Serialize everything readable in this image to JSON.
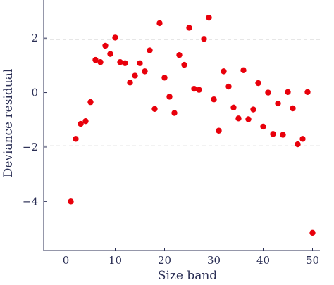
{
  "chart_data": {
    "type": "scatter",
    "xlabel": "Size band",
    "ylabel": "Deviance residual",
    "xlim": [
      -4.5,
      51.5
    ],
    "ylim": [
      -5.8,
      3.4
    ],
    "x_ticks": [
      0,
      10,
      20,
      30,
      40,
      50
    ],
    "y_ticks": [
      -4,
      -2,
      0,
      2
    ],
    "x_tick_labels": [
      "0",
      "10",
      "20",
      "30",
      "40",
      "50"
    ],
    "y_tick_labels": [
      "−4",
      "−2",
      "0",
      "2"
    ],
    "grid": false,
    "reference_lines": [
      1.96,
      -1.96
    ],
    "colors": {
      "points": "#e8000b",
      "axis": "#2b2f55",
      "reference": "#9a9a9a"
    },
    "points": [
      {
        "x": 1,
        "y": -4.0
      },
      {
        "x": 2,
        "y": -1.7
      },
      {
        "x": 3,
        "y": -1.15
      },
      {
        "x": 4,
        "y": -1.05
      },
      {
        "x": 5,
        "y": -0.35
      },
      {
        "x": 6,
        "y": 1.2
      },
      {
        "x": 7,
        "y": 1.12
      },
      {
        "x": 8,
        "y": 1.72
      },
      {
        "x": 9,
        "y": 1.42
      },
      {
        "x": 10,
        "y": 2.02
      },
      {
        "x": 11,
        "y": 1.12
      },
      {
        "x": 12,
        "y": 1.08
      },
      {
        "x": 13,
        "y": 0.37
      },
      {
        "x": 14,
        "y": 0.62
      },
      {
        "x": 15,
        "y": 1.08
      },
      {
        "x": 16,
        "y": 0.78
      },
      {
        "x": 17,
        "y": 1.55
      },
      {
        "x": 18,
        "y": -0.6
      },
      {
        "x": 19,
        "y": 2.55
      },
      {
        "x": 20,
        "y": 0.55
      },
      {
        "x": 21,
        "y": -0.15
      },
      {
        "x": 22,
        "y": -0.75
      },
      {
        "x": 23,
        "y": 1.38
      },
      {
        "x": 24,
        "y": 1.02
      },
      {
        "x": 25,
        "y": 2.38
      },
      {
        "x": 26,
        "y": 0.14
      },
      {
        "x": 27,
        "y": 0.1
      },
      {
        "x": 28,
        "y": 1.97
      },
      {
        "x": 29,
        "y": 2.75
      },
      {
        "x": 30,
        "y": -0.25
      },
      {
        "x": 31,
        "y": -1.4
      },
      {
        "x": 32,
        "y": 0.78
      },
      {
        "x": 33,
        "y": 0.22
      },
      {
        "x": 34,
        "y": -0.55
      },
      {
        "x": 35,
        "y": -0.95
      },
      {
        "x": 36,
        "y": 0.82
      },
      {
        "x": 37,
        "y": -0.98
      },
      {
        "x": 38,
        "y": -0.62
      },
      {
        "x": 39,
        "y": 0.35
      },
      {
        "x": 40,
        "y": -1.25
      },
      {
        "x": 41,
        "y": 0.0
      },
      {
        "x": 42,
        "y": -1.52
      },
      {
        "x": 43,
        "y": -0.4
      },
      {
        "x": 44,
        "y": -1.55
      },
      {
        "x": 45,
        "y": 0.02
      },
      {
        "x": 46,
        "y": -0.58
      },
      {
        "x": 47,
        "y": -1.9
      },
      {
        "x": 48,
        "y": -1.7
      },
      {
        "x": 49,
        "y": 0.02
      },
      {
        "x": 50,
        "y": -5.15
      }
    ]
  }
}
